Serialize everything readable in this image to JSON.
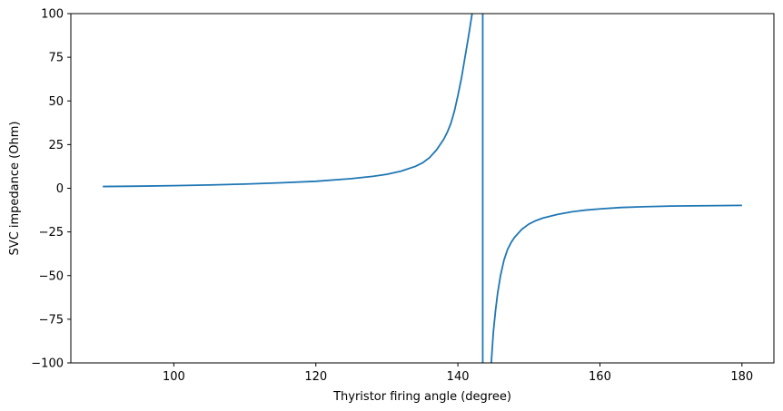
{
  "chart_data": {
    "type": "line",
    "title": "",
    "xlabel": "Thyristor firing angle (degree)",
    "ylabel": "SVC impedance (Ohm)",
    "xlim": [
      85.5,
      184.5
    ],
    "ylim": [
      -100,
      100
    ],
    "x_ticks": [
      100,
      120,
      140,
      160,
      180
    ],
    "y_ticks": [
      -100,
      -75,
      -50,
      -25,
      0,
      25,
      50,
      75,
      100
    ],
    "x_tick_labels": [
      "100",
      "120",
      "140",
      "160",
      "180"
    ],
    "y_tick_labels": [
      "−100",
      "−75",
      "−50",
      "−25",
      "0",
      "25",
      "50",
      "75",
      "100"
    ],
    "grid": false,
    "colors": {
      "line": "#1f77b4",
      "axes": "#000000",
      "background": "#ffffff"
    },
    "series": [
      {
        "segments": [
          {
            "x": [
              90,
              95,
              100,
              105,
              110,
              115,
              120,
              125,
              128,
              130,
              132,
              134,
              135,
              136,
              137,
              138,
              138.5,
              139,
              139.5,
              140,
              140.5,
              141,
              141.5,
              142,
              142.3,
              142.5,
              142.7
            ],
            "y": [
              1.0,
              1.2,
              1.5,
              1.9,
              2.4,
              3.1,
              4.0,
              5.5,
              6.8,
              8.0,
              9.8,
              12.5,
              14.5,
              17.5,
              22.0,
              28.0,
              32.0,
              37.0,
              44.0,
              53.0,
              63.0,
              75.0,
              87.0,
              100.0,
              110.0,
              120.0,
              130.0
            ]
          },
          {
            "x": [
              143.5,
              143.5
            ],
            "y": [
              100,
              -100
            ]
          },
          {
            "x": [
              144.3,
              144.5,
              144.7,
              145,
              145.3,
              145.6,
              146,
              146.5,
              147,
              147.5,
              148,
              149,
              150,
              151,
              152,
              154,
              156,
              158,
              160,
              163,
              166,
              170,
              175,
              180
            ],
            "y": [
              -130,
              -115,
              -100,
              -82,
              -70,
              -60,
              -50,
              -41,
              -35,
              -31,
              -28,
              -23.5,
              -20.5,
              -18.5,
              -17.0,
              -15.0,
              -13.5,
              -12.5,
              -11.8,
              -11.0,
              -10.6,
              -10.2,
              -10.0,
              -9.8
            ]
          }
        ]
      }
    ]
  }
}
